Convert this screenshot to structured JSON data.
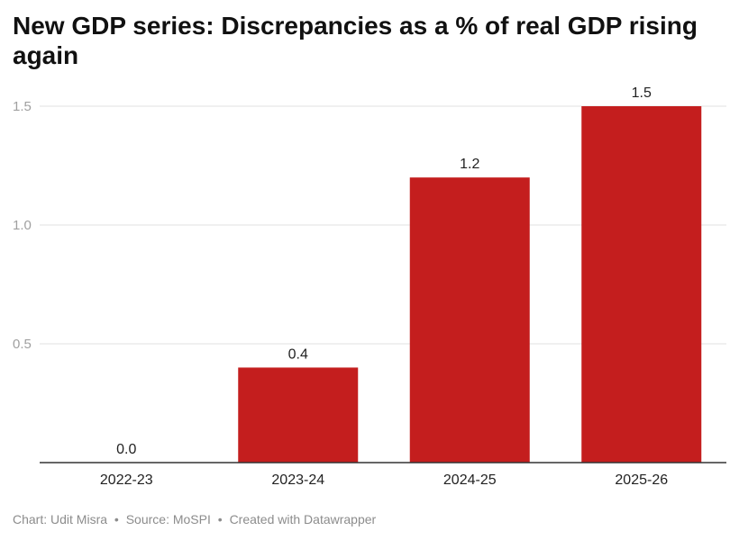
{
  "title": "New GDP series: Discrepancies as a % of real GDP rising again",
  "footer": {
    "chart_by": "Chart: Udit Misra",
    "source": "Source: MoSPI",
    "created_with": "Created with Datawrapper",
    "separator": "•"
  },
  "colors": {
    "bar": "#c41e1e",
    "grid": "#e2e2e2",
    "baseline": "#333333",
    "tick_label": "#a0a0a0",
    "category_label": "#222222",
    "value_label": "#222222"
  },
  "chart_data": {
    "type": "bar",
    "title": "New GDP series: Discrepancies as a % of real GDP rising again",
    "xlabel": "",
    "ylabel": "",
    "categories": [
      "2022-23",
      "2023-24",
      "2024-25",
      "2025-26"
    ],
    "values": [
      0.0,
      0.4,
      1.2,
      1.5
    ],
    "value_labels": [
      "0.0",
      "0.4",
      "1.2",
      "1.5"
    ],
    "yticks": [
      0.5,
      1.0,
      1.5
    ],
    "ytick_labels": [
      "0.5",
      "1.0",
      "1.5"
    ],
    "ylim": [
      0,
      1.5
    ],
    "grid": true,
    "legend": "none"
  }
}
